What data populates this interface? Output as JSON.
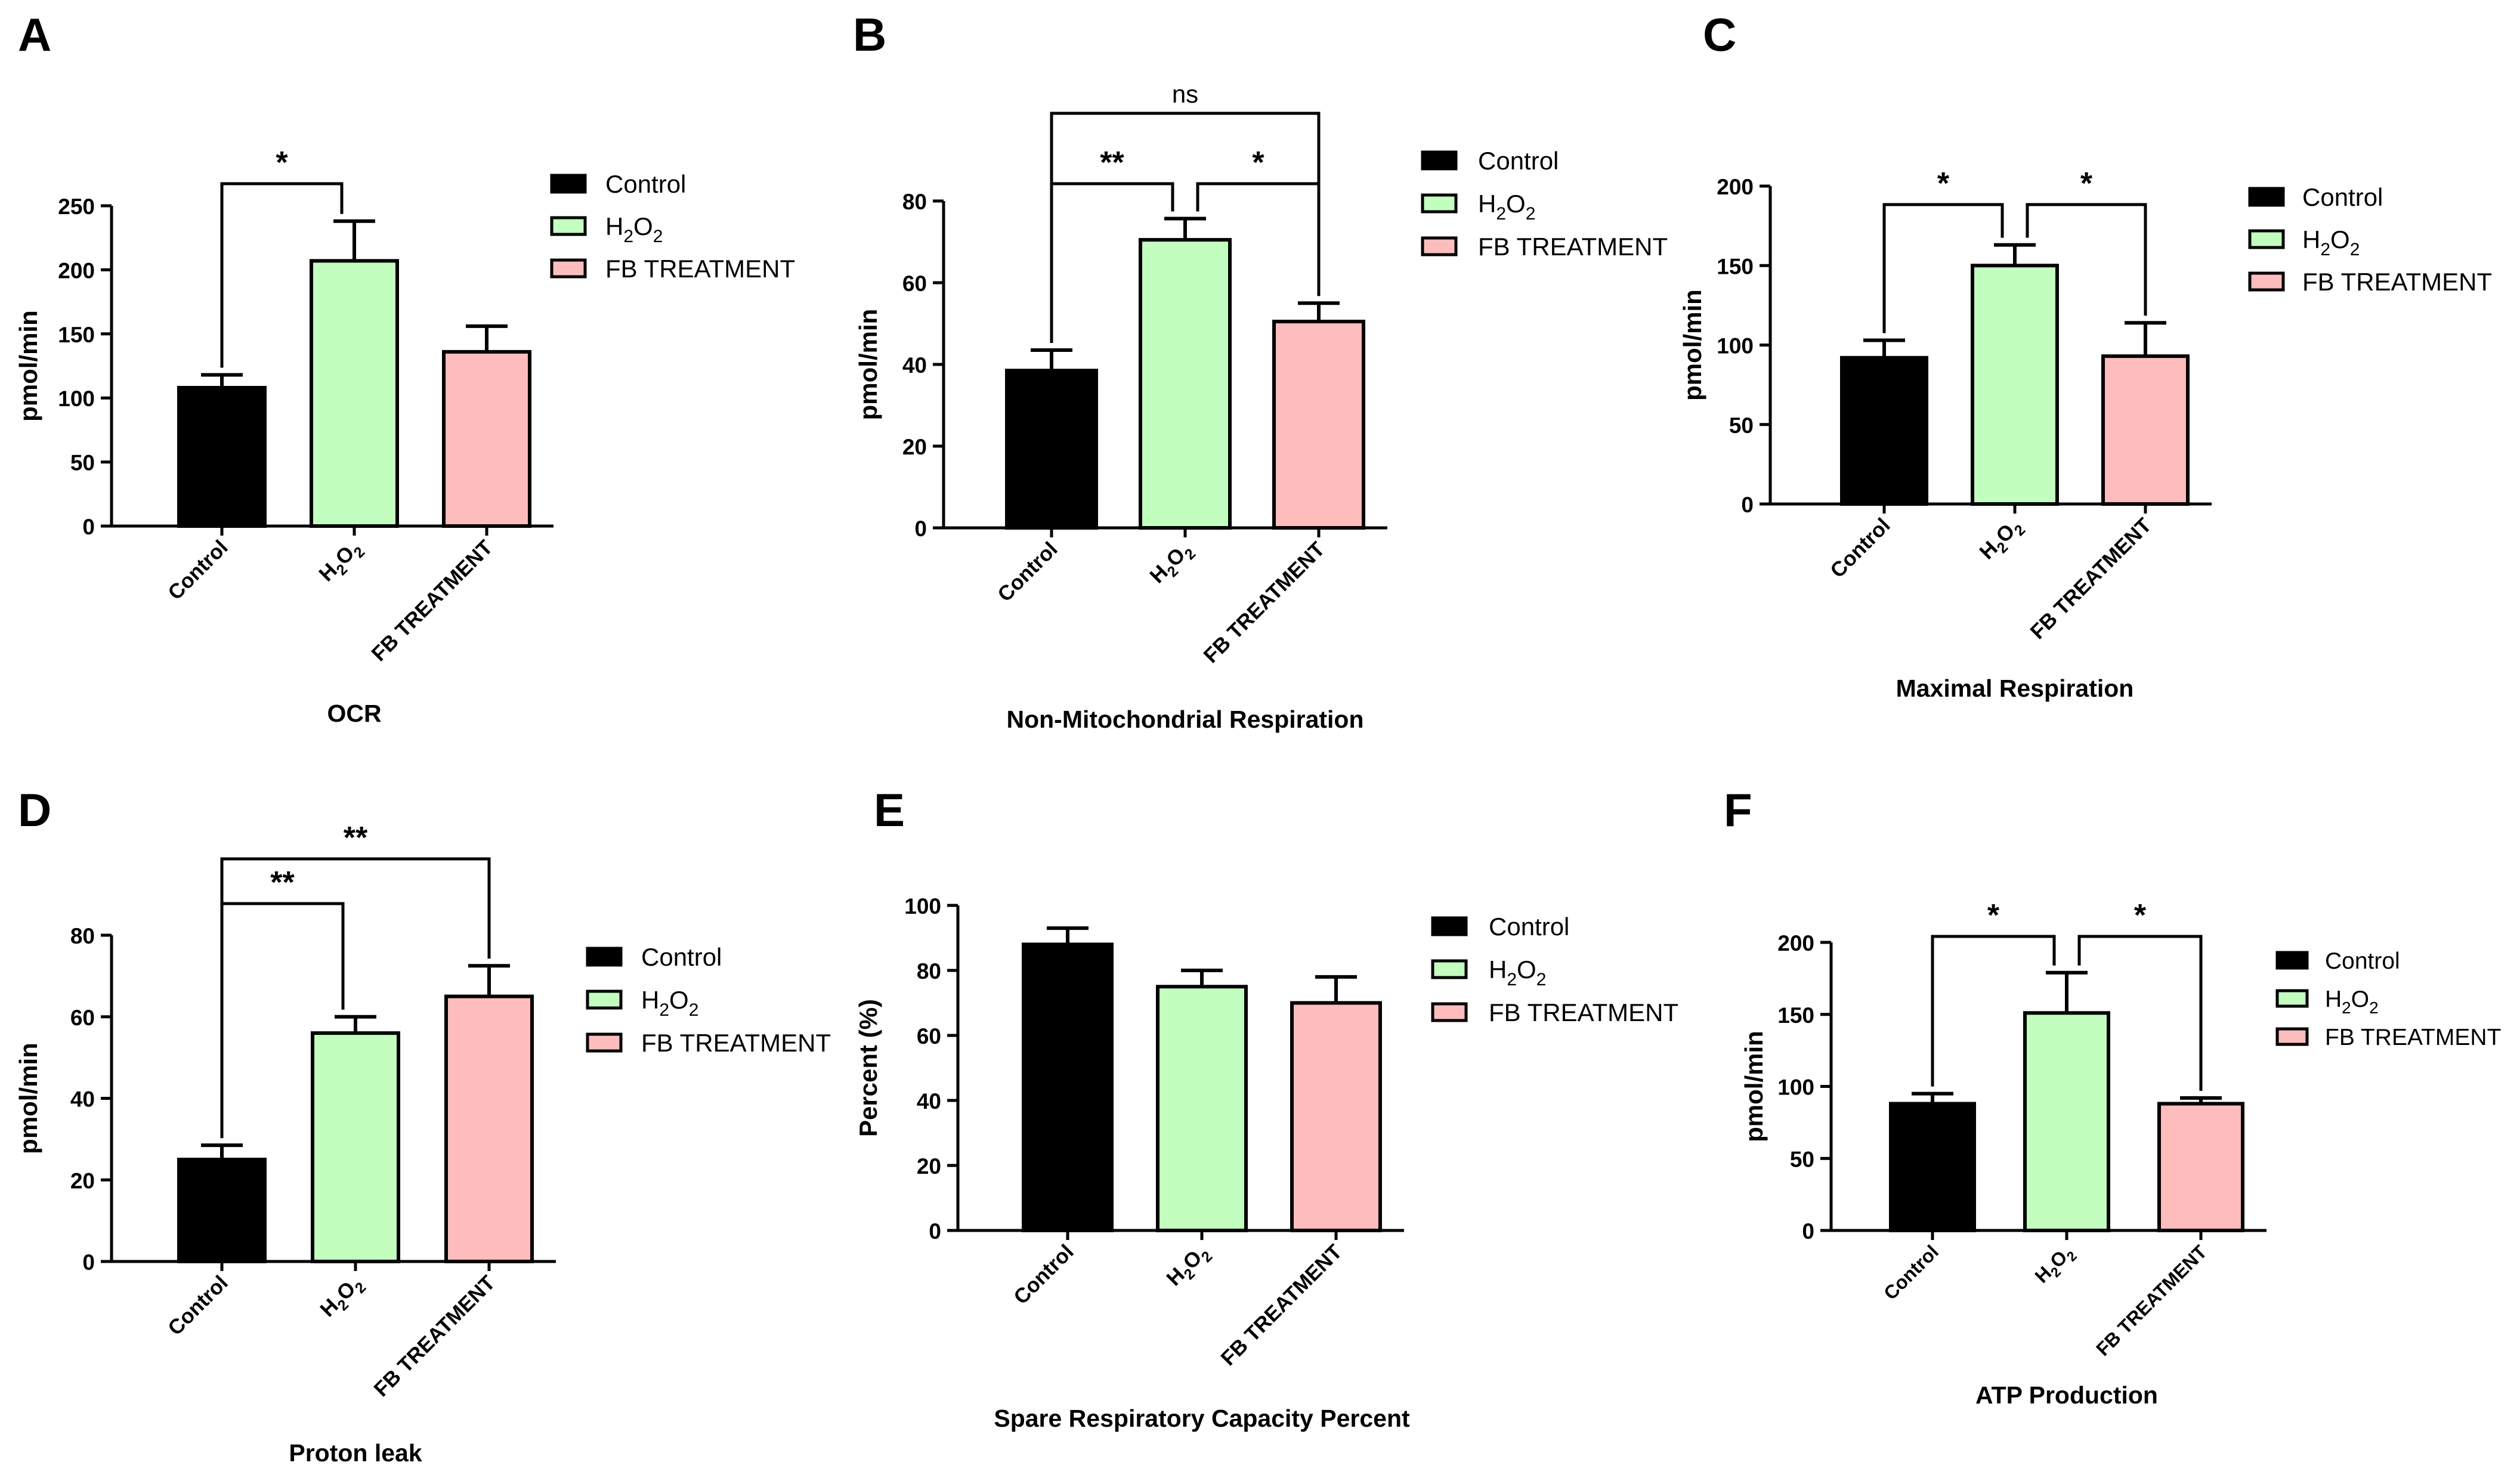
{
  "colors": {
    "control": "#000000",
    "h2o2": "#c2ffbf",
    "fb": "#ffbcbc",
    "stroke": "#000000"
  },
  "chart_data": [
    {
      "panel_label": "A",
      "type": "bar",
      "title": "OCR",
      "xlabel": "OCR",
      "ylabel": "pmol/min",
      "categories": [
        "Control",
        "H2O2",
        "FB TREATMENT"
      ],
      "values": [
        108,
        207,
        136
      ],
      "errors": [
        10,
        31,
        20
      ],
      "ylim": [
        0,
        250
      ],
      "yticks": [
        0,
        50,
        100,
        150,
        200,
        250
      ],
      "legend": [
        "Control",
        "H2O2",
        "FB TREATMENT"
      ],
      "significance": [
        {
          "from": 0,
          "to": 1,
          "label": "*"
        }
      ]
    },
    {
      "panel_label": "B",
      "type": "bar",
      "title": "Non-Mitochondrial Respiration",
      "xlabel": "Non-Mitochondrial Respiration",
      "ylabel": "pmol/min",
      "categories": [
        "Control",
        "H2O2",
        "FB TREATMENT"
      ],
      "values": [
        38.5,
        70.5,
        50.5
      ],
      "errors": [
        5,
        5.2,
        4.5
      ],
      "ylim": [
        0,
        80
      ],
      "yticks": [
        0,
        20,
        40,
        60,
        80
      ],
      "legend": [
        "Control",
        "H2O2",
        "FB TREATMENT"
      ],
      "significance": [
        {
          "from": 0,
          "to": 1,
          "label": "**"
        },
        {
          "from": 1,
          "to": 2,
          "label": "*"
        },
        {
          "from": 0,
          "to": 2,
          "label": "ns"
        }
      ]
    },
    {
      "panel_label": "C",
      "type": "bar",
      "title": "Maximal Respiration",
      "xlabel": "Maximal Respiration",
      "ylabel": "pmol/min",
      "categories": [
        "Control",
        "H2O2",
        "FB TREATMENT"
      ],
      "values": [
        92,
        150,
        93
      ],
      "errors": [
        11,
        13,
        21
      ],
      "ylim": [
        0,
        200
      ],
      "yticks": [
        0,
        50,
        100,
        150,
        200
      ],
      "legend": [
        "Control",
        "H2O2",
        "FB TREATMENT"
      ],
      "significance": [
        {
          "from": 0,
          "to": 1,
          "label": "*"
        },
        {
          "from": 1,
          "to": 2,
          "label": "*"
        }
      ]
    },
    {
      "panel_label": "D",
      "type": "bar",
      "title": "Proton leak",
      "xlabel": "Proton leak",
      "ylabel": "pmol/min",
      "categories": [
        "Control",
        "H2O2",
        "FB TREATMENT"
      ],
      "values": [
        25,
        56,
        65
      ],
      "errors": [
        3.5,
        4,
        7.5
      ],
      "ylim": [
        0,
        80
      ],
      "yticks": [
        0,
        20,
        40,
        60,
        80
      ],
      "legend": [
        "Control",
        "H2O2",
        "FB TREATMENT"
      ],
      "significance": [
        {
          "from": 0,
          "to": 1,
          "label": "**"
        },
        {
          "from": 0,
          "to": 2,
          "label": "**"
        }
      ]
    },
    {
      "panel_label": "E",
      "type": "bar",
      "title": "Spare Respiratory Capacity Percent",
      "xlabel": "Spare Respiratory Capacity Percent",
      "ylabel": "Percent (%)",
      "categories": [
        "Control",
        "H2O2",
        "FB TREATMENT"
      ],
      "values": [
        88,
        75,
        70
      ],
      "errors": [
        5,
        5,
        8
      ],
      "ylim": [
        0,
        100
      ],
      "yticks": [
        0,
        20,
        40,
        60,
        80,
        100
      ],
      "legend": [
        "Control",
        "H2O2",
        "FB TREATMENT"
      ],
      "significance": []
    },
    {
      "panel_label": "F",
      "type": "bar",
      "title": "ATP Production",
      "xlabel": "ATP Production",
      "ylabel": "pmol/min",
      "categories": [
        "Control",
        "H2O2",
        "FB TREATMENT"
      ],
      "values": [
        88,
        151,
        88
      ],
      "errors": [
        7,
        28,
        4
      ],
      "ylim": [
        0,
        200
      ],
      "yticks": [
        0,
        50,
        100,
        150,
        200
      ],
      "legend": [
        "Control",
        "H2O2",
        "FB TREATMENT"
      ],
      "significance": [
        {
          "from": 0,
          "to": 1,
          "label": "*"
        },
        {
          "from": 1,
          "to": 2,
          "label": "*"
        }
      ]
    }
  ]
}
